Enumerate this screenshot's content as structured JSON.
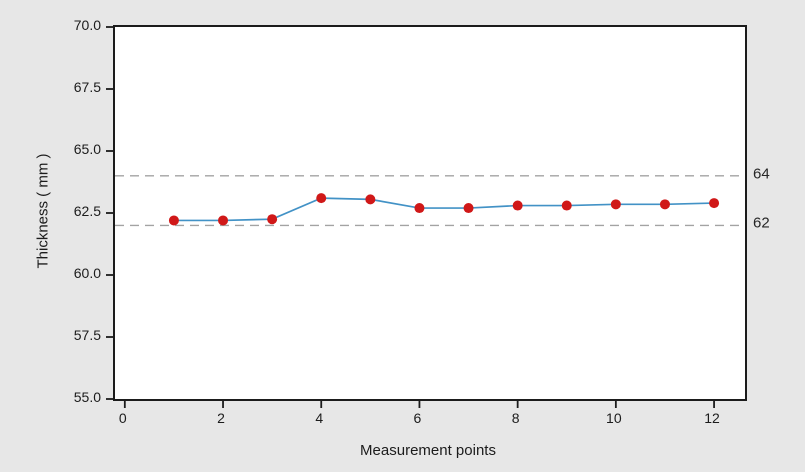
{
  "chart_data": {
    "type": "line",
    "title": "",
    "xlabel": "Measurement points",
    "ylabel": "Thickness ( mm )",
    "x": [
      1,
      2,
      3,
      4,
      5,
      6,
      7,
      8,
      9,
      10,
      11,
      12
    ],
    "y": [
      62.2,
      62.2,
      62.25,
      63.1,
      63.05,
      62.7,
      62.7,
      62.8,
      62.8,
      62.85,
      62.85,
      62.9
    ],
    "xlim": [
      -0.2,
      12.63
    ],
    "ylim": [
      55,
      70
    ],
    "x_ticks": [
      0,
      2,
      4,
      6,
      8,
      10,
      12
    ],
    "y_ticks": [
      55,
      57.5,
      60,
      62.5,
      65,
      67.5,
      70
    ],
    "y_tick_decimals": 1,
    "ref_lines": [
      {
        "value": 64,
        "label": "64"
      },
      {
        "value": 62,
        "label": "62"
      }
    ],
    "grid": false,
    "legend": "none",
    "colors": {
      "line": "#4292c6",
      "marker": "#d01818",
      "ref_line": "#a3a3a3",
      "spine": "#1b1b1b",
      "text": "#1c1c1c",
      "plot_bg": "#ffffff",
      "fig_bg": "#e7e7e7"
    },
    "marker_radius": 5
  }
}
